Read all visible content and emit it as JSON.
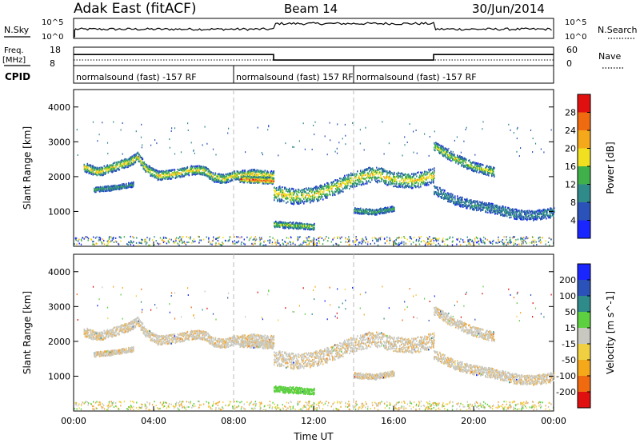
{
  "header": {
    "title": "Adak East (fitACF)",
    "beam": "Beam 14",
    "date": "30/Jun/2014"
  },
  "top_panels": {
    "nsky_label": "N.Sky",
    "nsky_ticks": [
      "10^5",
      "10^0"
    ],
    "nsearch_label": "N.Search",
    "nsearch_ticks": [
      "10^5",
      "10^0"
    ],
    "freq_label": "Freq.",
    "freq_unit": "[MHz]",
    "freq_ticks": [
      "18",
      "8"
    ],
    "nave_label": "Nave",
    "nave_ticks": [
      "60",
      "0"
    ],
    "cpid_label": "CPID",
    "cpid_segments": [
      {
        "label": "normalsound (fast) -157 RF",
        "start_h": 0,
        "end_h": 8
      },
      {
        "label": "normalsound (fast) 157 RF",
        "start_h": 8,
        "end_h": 14
      },
      {
        "label": "normalsound (fast) -157 RF",
        "start_h": 14,
        "end_h": 24
      }
    ],
    "freq_trace": [
      {
        "start_h": 0,
        "end_h": 10,
        "level": 0.6
      },
      {
        "start_h": 10,
        "end_h": 18,
        "level": 0.3
      },
      {
        "start_h": 18,
        "end_h": 24,
        "level": 0.6
      }
    ]
  },
  "chart_data": [
    {
      "type": "heatmap",
      "name": "power",
      "xlabel": "",
      "ylabel": "Slant Range [km]",
      "xlim_hours": [
        0,
        24
      ],
      "ylim": [
        0,
        4500
      ],
      "yticks": [
        "1000",
        "2000",
        "3000",
        "4000"
      ],
      "colorbar_label": "Power [dB]",
      "colorbar_ticks": [
        "4",
        "8",
        "12",
        "16",
        "20",
        "24",
        "28"
      ],
      "colorbar_colors": [
        "#1a26ff",
        "#2a52b8",
        "#2f8a8a",
        "#3fb04a",
        "#f0e020",
        "#f5a81a",
        "#f06a10",
        "#e01010"
      ],
      "bands": [
        {
          "points": [
            [
              0.5,
              2300
            ],
            [
              1.2,
              2150
            ],
            [
              2.0,
              2300
            ],
            [
              2.8,
              2450
            ],
            [
              3.2,
              2600
            ],
            [
              3.6,
              2250
            ],
            [
              4.2,
              2050
            ],
            [
              5.0,
              2100
            ],
            [
              5.8,
              2200
            ],
            [
              6.5,
              2200
            ],
            [
              7.0,
              2000
            ],
            [
              7.5,
              1950
            ],
            [
              8.0,
              2050
            ],
            [
              9.0,
              2100
            ],
            [
              10.0,
              2050
            ]
          ],
          "width": 130,
          "intensity": 0.55
        },
        {
          "points": [
            [
              1.0,
              1650
            ],
            [
              2.0,
              1700
            ],
            [
              3.0,
              1800
            ]
          ],
          "width": 70,
          "intensity": 0.25
        },
        {
          "points": [
            [
              8.3,
              1950
            ],
            [
              9.2,
              1920
            ],
            [
              10.0,
              1900
            ]
          ],
          "width": 90,
          "intensity": 0.85
        },
        {
          "points": [
            [
              10.0,
              1550
            ],
            [
              11.0,
              1450
            ],
            [
              12.0,
              1500
            ],
            [
              13.0,
              1700
            ],
            [
              14.0,
              1950
            ],
            [
              15.0,
              2100
            ],
            [
              16.0,
              1950
            ],
            [
              17.0,
              1900
            ],
            [
              18.0,
              2050
            ]
          ],
          "width": 220,
          "intensity": 0.55
        },
        {
          "points": [
            [
              10.0,
              650
            ],
            [
              11.0,
              620
            ],
            [
              12.0,
              580
            ]
          ],
          "width": 90,
          "intensity": 0.45
        },
        {
          "points": [
            [
              14.0,
              1050
            ],
            [
              15.0,
              1000
            ],
            [
              16.0,
              1100
            ]
          ],
          "width": 80,
          "intensity": 0.3
        },
        {
          "points": [
            [
              18.0,
              2900
            ],
            [
              19.0,
              2550
            ],
            [
              20.0,
              2300
            ],
            [
              21.0,
              2150
            ]
          ],
          "width": 140,
          "intensity": 0.45
        },
        {
          "points": [
            [
              18.0,
              1650
            ],
            [
              19.0,
              1350
            ],
            [
              20.0,
              1200
            ],
            [
              21.0,
              1100
            ],
            [
              22.0,
              950
            ],
            [
              23.0,
              900
            ],
            [
              24.0,
              1000
            ]
          ],
          "width": 140,
          "intensity": 0.2
        }
      ]
    },
    {
      "type": "heatmap",
      "name": "velocity",
      "xlabel": "Time UT",
      "ylabel": "Slant Range [km]",
      "xlim_hours": [
        0,
        24
      ],
      "ylim": [
        0,
        4500
      ],
      "xticks": [
        "00:00",
        "04:00",
        "08:00",
        "12:00",
        "16:00",
        "20:00",
        "00:00"
      ],
      "yticks": [
        "1000",
        "2000",
        "3000",
        "4000"
      ],
      "colorbar_label": "Velocity [m s^-1]",
      "colorbar_ticks": [
        "200",
        "100",
        "50",
        "15",
        "-15",
        "-50",
        "-100",
        "-200"
      ],
      "colorbar_colors": [
        "#1a26ff",
        "#2a52b8",
        "#2f8a8a",
        "#5cd040",
        "#c8c8c0",
        "#f0d040",
        "#f5a81a",
        "#f06a10",
        "#e01010"
      ]
    }
  ]
}
